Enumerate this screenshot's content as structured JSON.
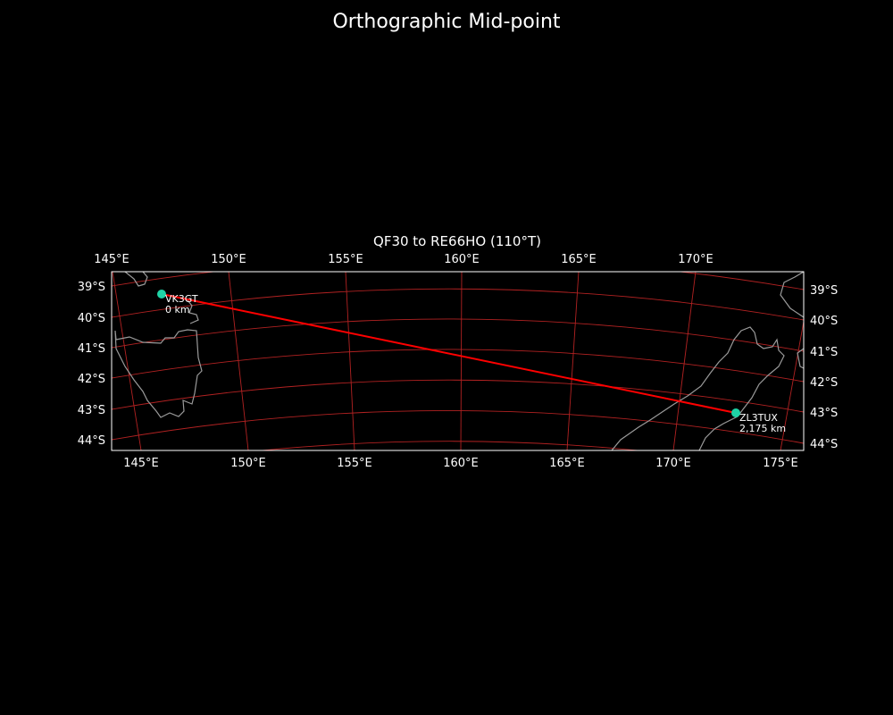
{
  "figure_title": "Orthographic Mid-point",
  "map_title": "QF30 to RE66HO (110°T)",
  "top_lon_labels": [
    "145°E",
    "150°E",
    "155°E",
    "160°E",
    "165°E",
    "170°E"
  ],
  "bottom_lon_labels": [
    "145°E",
    "150°E",
    "155°E",
    "160°E",
    "165°E",
    "170°E",
    "175°E"
  ],
  "left_lat_labels": [
    "39°S",
    "40°S",
    "41°S",
    "42°S",
    "43°S",
    "44°S"
  ],
  "right_lat_labels": [
    "39°S",
    "40°S",
    "41°S",
    "42°S",
    "43°S",
    "44°S"
  ],
  "points": [
    {
      "call": "VK3GT",
      "distance": "0 km"
    },
    {
      "call": "ZL3TUX",
      "distance": "2,175 km"
    }
  ],
  "colors": {
    "background": "#000000",
    "path": "#ff0000",
    "grid": "#b22222",
    "coast": "#9a9a9a",
    "marker": "#1fd3a6"
  }
}
